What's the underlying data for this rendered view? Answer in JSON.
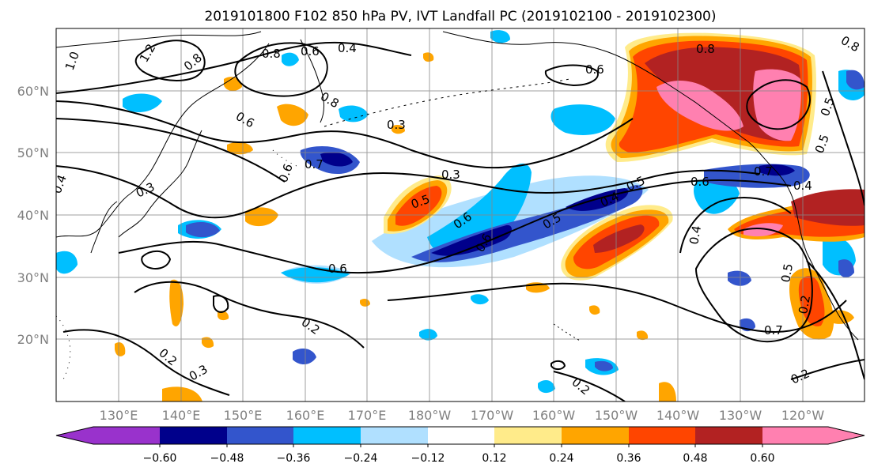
{
  "title": "2019101800 F102 850 hPa PV, IVT Landfall PC (2019102100 - 2019102300)",
  "lon_labels": [
    "130°E",
    "140°E",
    "150°E",
    "160°E",
    "170°E",
    "180°W",
    "170°W",
    "160°W",
    "150°W",
    "140°W",
    "130°W",
    "120°W"
  ],
  "lat_labels": [
    "60°N",
    "50°N",
    "40°N",
    "30°N",
    "20°N"
  ],
  "colorbar": {
    "tick_labels": [
      "−0.60",
      "−0.48",
      "−0.36",
      "−0.24",
      "−0.12",
      "0.12",
      "0.24",
      "0.36",
      "0.48",
      "0.60"
    ],
    "levels": [
      -0.6,
      -0.48,
      -0.36,
      -0.24,
      -0.12,
      0.12,
      0.24,
      0.36,
      0.48,
      0.6
    ],
    "colors": [
      "#9932cc",
      "#00008b",
      "#3355cc",
      "#00bfff",
      "#b0e0ff",
      "#ffffff",
      "#ffeb8a",
      "#ffa500",
      "#ff4500",
      "#b22222",
      "#ff80b0"
    ]
  },
  "contour_labels": [
    "1.0",
    "1.2",
    "0.8",
    "0.8",
    "0.6",
    "0.4",
    "0.8",
    "0.6",
    "0.3",
    "0.7",
    "0.6",
    "0.3",
    "0.3",
    "0.4",
    "0.5",
    "0.6",
    "0.6",
    "0.4",
    "0.5",
    "0.6",
    "0.6",
    "0.2",
    "0.2",
    "0.3",
    "0.6",
    "0.8",
    "0.8",
    "0.7",
    "0.5",
    "0.4",
    "0.4",
    "0.5",
    "0.5",
    "0.7",
    "0.2",
    "0.2",
    "0.5",
    "0.2"
  ]
}
